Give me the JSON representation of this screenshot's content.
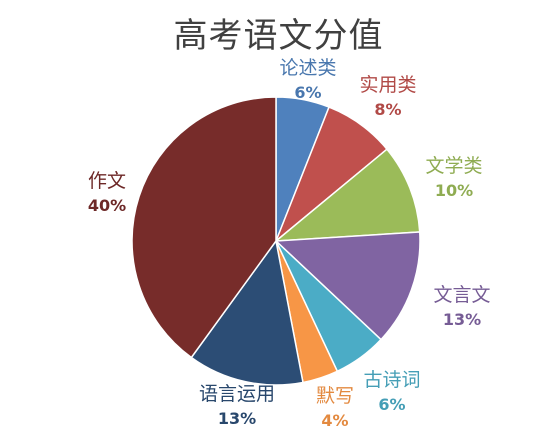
{
  "chart_data": {
    "type": "pie",
    "title": "高考语文分值",
    "slices": [
      {
        "label": "论述类",
        "value": 6,
        "value_label": "6%",
        "color": "#4F81BD"
      },
      {
        "label": "实用类",
        "value": 8,
        "value_label": "8%",
        "color": "#C0504D"
      },
      {
        "label": "文学类",
        "value": 10,
        "value_label": "10%",
        "color": "#9BBB59"
      },
      {
        "label": "文言文",
        "value": 13,
        "value_label": "13%",
        "color": "#8064A2"
      },
      {
        "label": "古诗词",
        "value": 6,
        "value_label": "6%",
        "color": "#4BACC6"
      },
      {
        "label": "默写",
        "value": 4,
        "value_label": "4%",
        "color": "#F79646"
      },
      {
        "label": "语言运用",
        "value": 13,
        "value_label": "13%",
        "color": "#2C4D75"
      },
      {
        "label": "作文",
        "value": 40,
        "value_label": "40%",
        "color": "#772C2A"
      }
    ],
    "start_angle": "top (12 o'clock)",
    "direction": "clockwise",
    "legend": "none",
    "data_labels": "outside, category name above percentage"
  }
}
